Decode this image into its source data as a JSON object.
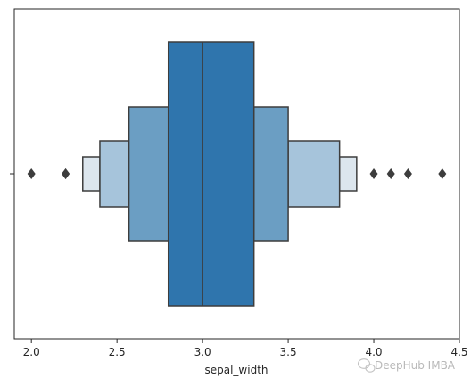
{
  "chart_data": {
    "type": "boxen",
    "xlabel": "sepal_width",
    "ylabel": "",
    "xlim": [
      1.9,
      4.5
    ],
    "xticks": [
      2.0,
      2.5,
      3.0,
      3.5,
      4.0,
      4.5
    ],
    "xtick_labels": [
      "2.0",
      "2.5",
      "3.0",
      "3.5",
      "4.0",
      "4.5"
    ],
    "grid": false,
    "median": 3.0,
    "levels": [
      {
        "low": 2.8,
        "high": 3.3,
        "color": "#2f75ad"
      },
      {
        "low": 2.57,
        "high": 2.8,
        "color": "#6b9ec3"
      },
      {
        "low": 3.3,
        "high": 3.5,
        "color": "#6b9ec3"
      },
      {
        "low": 2.4,
        "high": 2.57,
        "color": "#a6c4db"
      },
      {
        "low": 3.5,
        "high": 3.8,
        "color": "#a6c4db"
      },
      {
        "low": 2.3,
        "high": 2.4,
        "color": "#dce6ee"
      },
      {
        "low": 3.8,
        "high": 3.9,
        "color": "#dce6ee"
      }
    ],
    "outliers": [
      2.0,
      2.2,
      2.2,
      4.0,
      4.1,
      4.2,
      4.4
    ],
    "colors": {
      "edge": "#3d3d3d",
      "outlier": "#3d3d3d"
    }
  },
  "watermark": {
    "text": "DeepHub IMBA",
    "icon": "wechat-icon"
  }
}
